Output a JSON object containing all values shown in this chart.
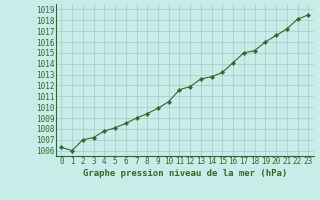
{
  "x": [
    0,
    1,
    2,
    3,
    4,
    5,
    6,
    7,
    8,
    9,
    10,
    11,
    12,
    13,
    14,
    15,
    16,
    17,
    18,
    19,
    20,
    21,
    22,
    23
  ],
  "y": [
    1006.3,
    1006.0,
    1007.0,
    1007.2,
    1007.8,
    1008.1,
    1008.5,
    1009.0,
    1009.4,
    1009.9,
    1010.5,
    1011.6,
    1011.9,
    1012.6,
    1012.8,
    1013.2,
    1014.1,
    1015.0,
    1015.2,
    1016.0,
    1016.6,
    1017.2,
    1018.1,
    1018.5
  ],
  "line_color": "#2d6a2d",
  "marker": "D",
  "marker_size": 2.2,
  "background_color": "#c8ece8",
  "grid_color": "#a0ccc8",
  "xlabel": "Graphe pression niveau de la mer (hPa)",
  "xlabel_fontsize": 6.5,
  "tick_fontsize": 5.5,
  "ylim_min": 1005.5,
  "ylim_max": 1019.5,
  "xlim_min": -0.5,
  "xlim_max": 23.5
}
